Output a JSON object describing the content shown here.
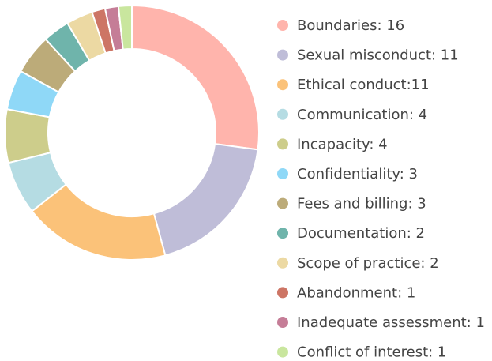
{
  "chart_data": {
    "type": "donut",
    "categories": [
      "Boundaries: 16",
      "Sexual misconduct: 11",
      "Ethical conduct:11",
      "Communication: 4",
      "Incapacity: 4",
      "Confidentiality: 3",
      "Fees and billing: 3",
      "Documentation: 2",
      "Scope of practice: 2",
      "Abandonment: 1",
      "Inadequate assessment: 1",
      "Conflict of interest: 1"
    ],
    "values": [
      16,
      11,
      11,
      4,
      4,
      3,
      3,
      2,
      2,
      1,
      1,
      1
    ],
    "colors": [
      "#ffb4ac",
      "#bfbdd8",
      "#fbc279",
      "#b5dce3",
      "#cdcd8b",
      "#8fd8f7",
      "#bcab79",
      "#6fb4ab",
      "#ecd9a3",
      "#cd7565",
      "#c57d97",
      "#c9e69e"
    ],
    "legend": "right"
  }
}
